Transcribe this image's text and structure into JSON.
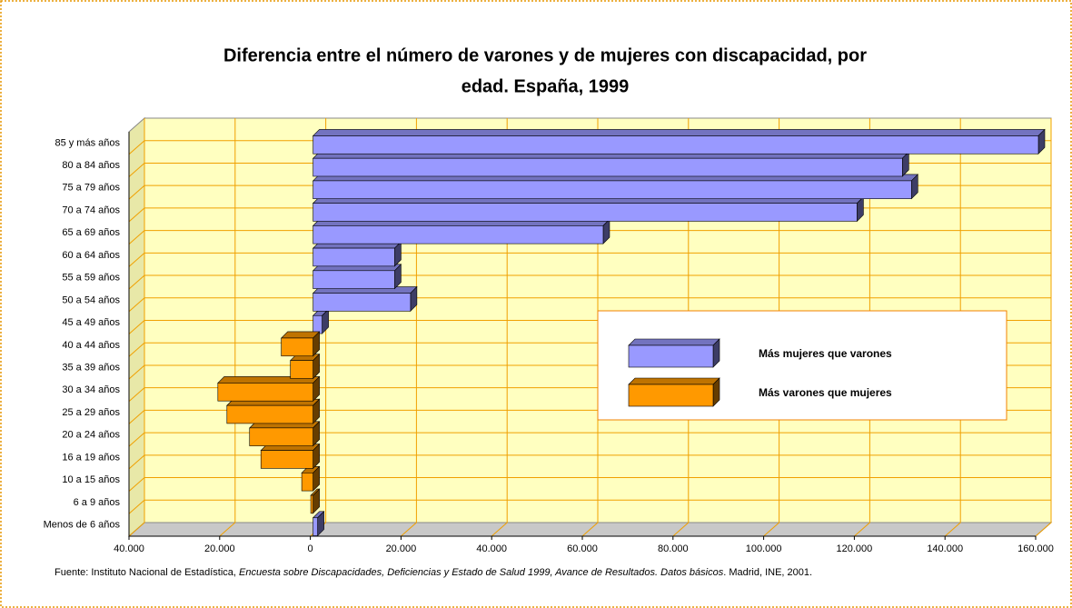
{
  "chart_data": {
    "type": "bar",
    "orientation": "horizontal",
    "title": [
      "Diferencia entre el número de varones y de mujeres con discapacidad, por",
      "edad. España, 1999"
    ],
    "categories": [
      "Menos de 6 años",
      "6 a 9 años",
      "10 a 15 años",
      "16 a 19 años",
      "20 a 24 años",
      "25 a 29 años",
      "30 a 34 años",
      "35 a 39 años",
      "40 a 44 años",
      "45 a 49 años",
      "50 a 54 años",
      "55 a 59 años",
      "60 a 64 años",
      "65 a 69 años",
      "70 a 74 años",
      "75 a 79 años",
      "80 a 84 años",
      "85 y más años"
    ],
    "series": [
      {
        "name": "Más mujeres que varones",
        "color": "#9999ff",
        "values": [
          1000,
          null,
          null,
          null,
          null,
          null,
          null,
          null,
          null,
          2000,
          21500,
          18000,
          18000,
          64000,
          120000,
          132000,
          130000,
          160000
        ]
      },
      {
        "name": "Más varones que mujeres",
        "color": "#ff9900",
        "values": [
          null,
          -500,
          -2500,
          -11500,
          -14000,
          -19000,
          -21000,
          -5000,
          -7000,
          null,
          null,
          null,
          null,
          null,
          null,
          null,
          null,
          null
        ]
      }
    ],
    "xlim": [
      -40000,
      160000
    ],
    "xticks": [
      {
        "value": -40000,
        "label": "40.000"
      },
      {
        "value": -20000,
        "label": "20.000"
      },
      0,
      {
        "value": 20000,
        "label": "20.000"
      },
      {
        "value": 40000,
        "label": "40.000"
      },
      {
        "value": 60000,
        "label": "60.000"
      },
      {
        "value": 80000,
        "label": "80.000"
      },
      {
        "value": 100000,
        "label": "100.000"
      },
      {
        "value": 120000,
        "label": "120.000"
      },
      {
        "value": 140000,
        "label": "140.000"
      },
      {
        "value": 160000,
        "label": "160.000"
      }
    ],
    "grid": true,
    "legend": "right",
    "source": [
      "Fuente:  Instituto Nacional de Estadística, ",
      "Encuesta sobre Discapacidades, Deficiencias y Estado de Salud 1999, Avance de Resultados. Datos básicos",
      ". Madrid, INE, 2001."
    ]
  }
}
